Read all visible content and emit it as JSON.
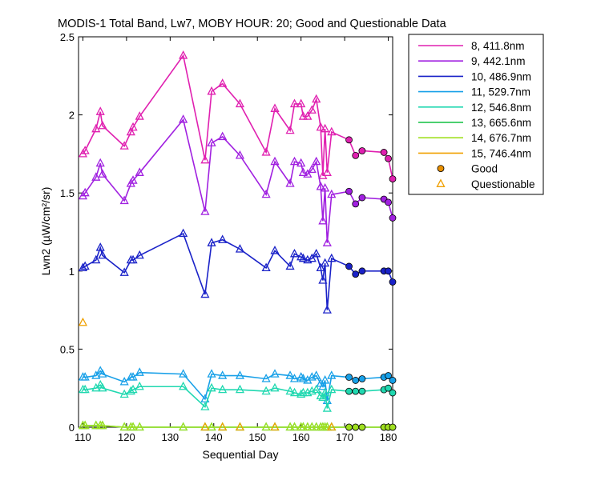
{
  "chart_data": {
    "type": "line",
    "title": "MODIS-1 Total Band, Lw7, MOBY HOUR: 20;  Good and Questionable Data",
    "xlabel": "Sequential Day",
    "ylabel": "Lwn2 (µW/cm²/sr)",
    "xlim": [
      109,
      181
    ],
    "ylim": [
      0,
      2.5
    ],
    "xticks": [
      110,
      120,
      130,
      140,
      150,
      160,
      170,
      180
    ],
    "yticks": [
      0,
      0.5,
      1,
      1.5,
      2,
      2.5
    ],
    "ytick_labels": [
      "0",
      "0.5",
      "1",
      "1.5",
      "2",
      "2.5"
    ],
    "legend_position": "outside-right",
    "legend_markers": [
      {
        "label": "Good",
        "marker": "circle",
        "color": "#e88f00"
      },
      {
        "label": "Questionable",
        "marker": "triangle",
        "color": "#f0a000"
      }
    ],
    "x_q": [
      110,
      110.5,
      113,
      114,
      114.5,
      119.5,
      121,
      121.5,
      123,
      133,
      138,
      139.5,
      142,
      146,
      152,
      154,
      157.5,
      158.5,
      160,
      160.5,
      161.5,
      162.5,
      163.5,
      164.5,
      165,
      165.5,
      166,
      167
    ],
    "x_g": [
      171,
      172.5,
      174,
      179,
      180,
      181
    ],
    "series": [
      {
        "name": "8, 411.8nm",
        "color": "#e020b0",
        "q": [
          1.75,
          1.77,
          1.91,
          2.02,
          1.93,
          1.8,
          1.89,
          1.92,
          1.99,
          2.38,
          1.71,
          2.15,
          2.2,
          2.07,
          1.76,
          2.04,
          1.9,
          2.07,
          2.07,
          1.99,
          1.99,
          2.03,
          2.1,
          1.92,
          1.61,
          1.91,
          1.63,
          1.89
        ],
        "g": [
          1.84,
          1.74,
          1.77,
          1.76,
          1.72,
          1.59
        ]
      },
      {
        "name": "9, 442.1nm",
        "color": "#a020e0",
        "q": [
          1.48,
          1.5,
          1.6,
          1.69,
          1.62,
          1.45,
          1.56,
          1.58,
          1.63,
          1.97,
          1.38,
          1.82,
          1.86,
          1.74,
          1.49,
          1.7,
          1.56,
          1.7,
          1.69,
          1.63,
          1.62,
          1.65,
          1.7,
          1.54,
          1.32,
          1.53,
          1.18,
          1.49
        ],
        "g": [
          1.51,
          1.43,
          1.47,
          1.46,
          1.44,
          1.34
        ]
      },
      {
        "name": "10, 486.9nm",
        "color": "#1a22c8",
        "q": [
          1.02,
          1.03,
          1.07,
          1.15,
          1.1,
          0.99,
          1.07,
          1.07,
          1.1,
          1.24,
          0.85,
          1.18,
          1.2,
          1.14,
          1.02,
          1.13,
          1.03,
          1.11,
          1.09,
          1.08,
          1.07,
          1.08,
          1.11,
          1.02,
          0.94,
          1.05,
          0.75,
          1.08
        ],
        "g": [
          1.03,
          0.98,
          1.0,
          1.0,
          1.0,
          0.93
        ]
      },
      {
        "name": "11, 529.7nm",
        "color": "#18a0e8",
        "q": [
          0.32,
          0.32,
          0.33,
          0.36,
          0.34,
          0.29,
          0.32,
          0.32,
          0.35,
          0.34,
          0.18,
          0.34,
          0.33,
          0.33,
          0.31,
          0.34,
          0.33,
          0.31,
          0.32,
          0.31,
          0.3,
          0.32,
          0.33,
          0.28,
          0.26,
          0.3,
          0.17,
          0.33
        ],
        "g": [
          0.32,
          0.3,
          0.31,
          0.32,
          0.33,
          0.3
        ]
      },
      {
        "name": "12, 546.8nm",
        "color": "#20d8b0",
        "q": [
          0.24,
          0.24,
          0.25,
          0.27,
          0.25,
          0.21,
          0.23,
          0.24,
          0.26,
          0.26,
          0.13,
          0.25,
          0.24,
          0.24,
          0.23,
          0.25,
          0.23,
          0.22,
          0.21,
          0.22,
          0.22,
          0.23,
          0.24,
          0.2,
          0.19,
          0.22,
          0.12,
          0.24
        ],
        "g": [
          0.23,
          0.23,
          0.23,
          0.24,
          0.25,
          0.22
        ]
      },
      {
        "name": "13, 665.6nm",
        "color": "#10c040",
        "q": [
          0.01,
          0.01,
          0.01,
          0.01,
          0.01,
          0.0,
          0.0,
          0.0,
          0.0,
          0.0,
          0.0,
          0.0,
          0.0,
          0.0,
          0.0,
          0.0,
          0.0,
          0.0,
          0.0,
          0.0,
          0.0,
          0.0,
          0.0,
          0.0,
          0.0,
          0.0,
          0.0,
          0.0
        ],
        "g": [
          0.0,
          0.0,
          0.0,
          0.0,
          0.0,
          0.0
        ]
      },
      {
        "name": "14, 676.7nm",
        "color": "#a0e020",
        "q": [
          0.01,
          0.01,
          0.01,
          0.01,
          0.01,
          0.0,
          0.0,
          0.0,
          0.0,
          0.0,
          0.0,
          0.0,
          0.0,
          0.0,
          0.0,
          0.0,
          0.0,
          0.0,
          0.0,
          0.0,
          0.0,
          0.0,
          0.0,
          0.0,
          0.0,
          0.0,
          0.0,
          0.0
        ],
        "g": [
          0.0,
          0.0,
          0.0,
          0.0,
          0.0,
          0.0
        ]
      },
      {
        "name": "15, 746.4nm",
        "color": "#f0a000",
        "q": [
          0.67,
          null,
          null,
          null,
          null,
          null,
          null,
          null,
          null,
          null,
          0.0,
          null,
          0.0,
          0.0,
          null,
          0.0,
          null,
          null,
          null,
          null,
          null,
          null,
          null,
          null,
          null,
          null,
          null,
          0.0
        ],
        "g": [
          null,
          null,
          null,
          null,
          null,
          null
        ]
      }
    ]
  }
}
